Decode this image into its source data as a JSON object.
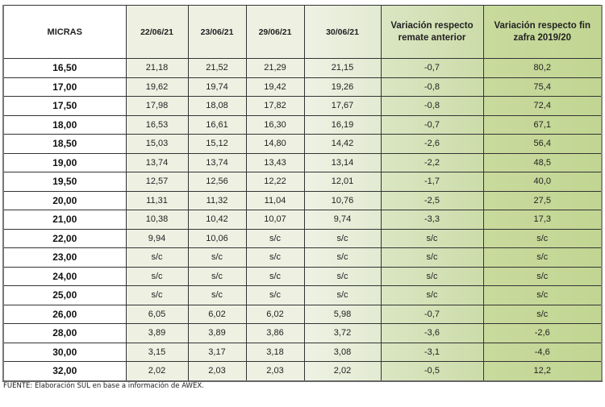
{
  "table": {
    "headers": [
      "MICRAS",
      "22/06/21",
      "23/06/21",
      "29/06/21",
      "30/06/21",
      "Variación respecto remate anterior",
      "Variación respecto fin zafra 2019/20"
    ],
    "rows": [
      [
        "16,50",
        "21,18",
        "21,52",
        "21,29",
        "21,15",
        "-0,7",
        "80,2"
      ],
      [
        "17,00",
        "19,62",
        "19,74",
        "19,42",
        "19,26",
        "-0,8",
        "75,4"
      ],
      [
        "17,50",
        "17,98",
        "18,08",
        "17,82",
        "17,67",
        "-0,8",
        "72,4"
      ],
      [
        "18,00",
        "16,53",
        "16,61",
        "16,30",
        "16,19",
        "-0,7",
        "67,1"
      ],
      [
        "18,50",
        "15,03",
        "15,12",
        "14,80",
        "14,42",
        "-2,6",
        "56,4"
      ],
      [
        "19,00",
        "13,74",
        "13,74",
        "13,43",
        "13,14",
        "-2,2",
        "48,5"
      ],
      [
        "19,50",
        "12,57",
        "12,56",
        "12,22",
        "12,01",
        "-1,7",
        "40,0"
      ],
      [
        "20,00",
        "11,31",
        "11,32",
        "11,04",
        "10,76",
        "-2,5",
        "27,5"
      ],
      [
        "21,00",
        "10,38",
        "10,42",
        "10,07",
        "9,74",
        "-3,3",
        "17,3"
      ],
      [
        "22,00",
        "9,94",
        "10,06",
        "s/c",
        "s/c",
        "s/c",
        "s/c"
      ],
      [
        "23,00",
        "s/c",
        "s/c",
        "s/c",
        "s/c",
        "s/c",
        "s/c"
      ],
      [
        "24,00",
        "s/c",
        "s/c",
        "s/c",
        "s/c",
        "s/c",
        "s/c"
      ],
      [
        "25,00",
        "s/c",
        "s/c",
        "s/c",
        "s/c",
        "s/c",
        "s/c"
      ],
      [
        "26,00",
        "6,05",
        "6,02",
        "6,02",
        "5,98",
        "-0,7",
        "s/c"
      ],
      [
        "28,00",
        "3,89",
        "3,89",
        "3,86",
        "3,72",
        "-3,6",
        "-2,6"
      ],
      [
        "30,00",
        "3,15",
        "3,17",
        "3,18",
        "3,08",
        "-3,1",
        "-4,6"
      ],
      [
        "32,00",
        "2,02",
        "2,03",
        "2,03",
        "2,02",
        "-0,5",
        "12,2"
      ]
    ]
  },
  "footer": "FUENTE: Elaboración SUL en base a información de AWEX."
}
